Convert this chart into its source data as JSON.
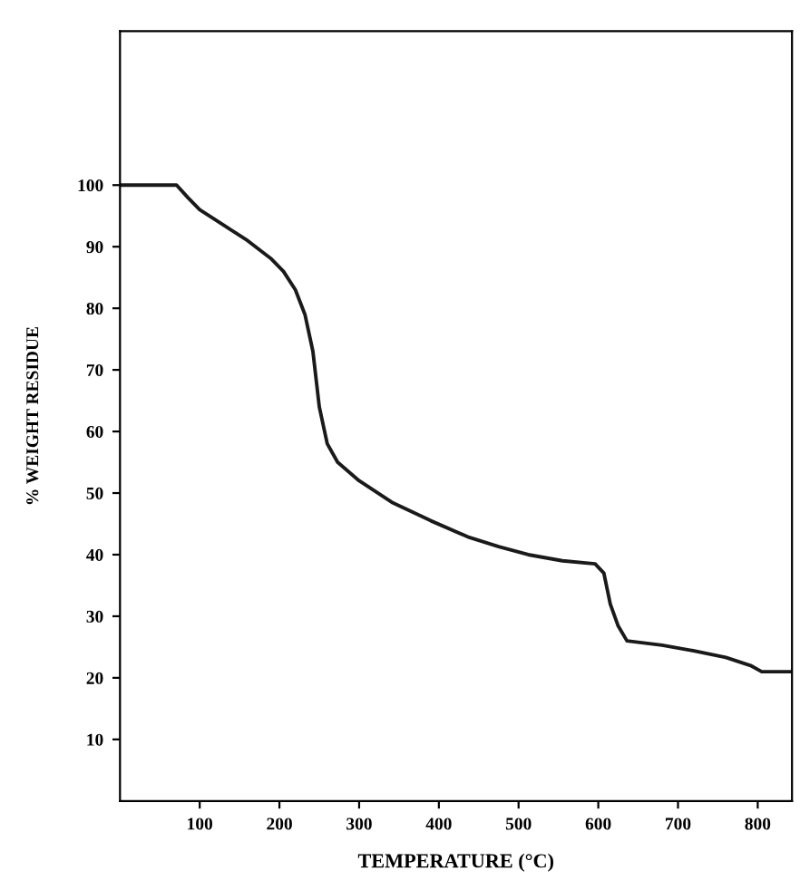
{
  "chart_data": {
    "type": "line",
    "xlabel": "TEMPERATURE (°C)",
    "ylabel": "% WEIGHT RESIDUE",
    "series": [
      {
        "color": "#1a1a1a",
        "x": [
          0,
          71,
          85,
          100,
          130,
          160,
          190,
          205,
          220,
          232,
          242,
          250,
          260,
          273,
          300,
          341,
          390,
          438,
          475,
          512,
          555,
          596,
          607,
          615,
          625,
          636,
          680,
          715,
          760,
          791,
          805,
          843
        ],
        "values": [
          100,
          100,
          98,
          96,
          93.5,
          91,
          88,
          86,
          83,
          79,
          73,
          64,
          58,
          55,
          52,
          48.5,
          45.5,
          42.8,
          41.3,
          40,
          39,
          38.5,
          37,
          32,
          28.4,
          26,
          25.3,
          24.5,
          23.3,
          22,
          21,
          21
        ]
      }
    ],
    "xlim": [
      0,
      843
    ],
    "ylim": [
      0,
      125
    ],
    "xticks": [
      100,
      200,
      300,
      400,
      500,
      600,
      700,
      800
    ],
    "yticks": [
      10,
      20,
      30,
      40,
      50,
      60,
      70,
      80,
      90,
      100
    ],
    "grid": false,
    "legend": false,
    "marker": "none",
    "line_style": "solid"
  }
}
